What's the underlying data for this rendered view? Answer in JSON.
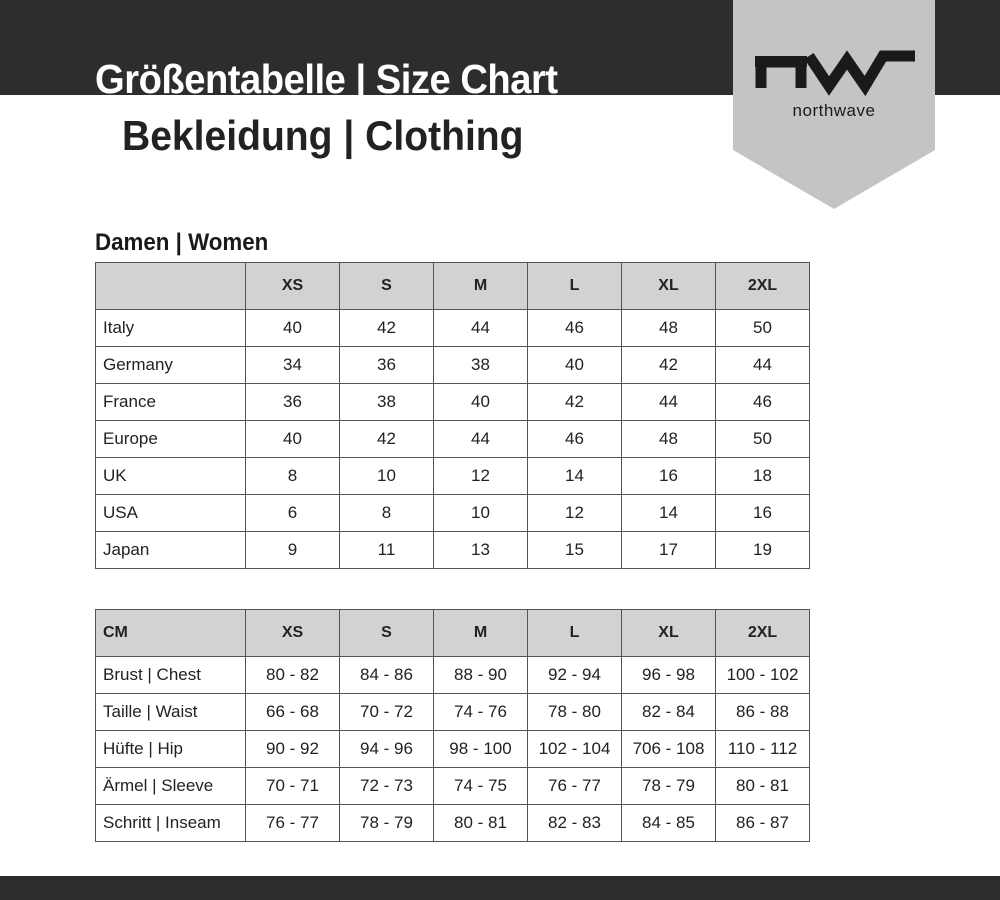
{
  "header": {
    "title": "Größentabelle | Size Chart",
    "subtitle": "Bekleidung | Clothing",
    "logo_mark": "nw",
    "logo_text": "northwave"
  },
  "colors": {
    "band": "#2d2d2d",
    "pennant": "#c4c4c4",
    "table_header": "#d2d2d2"
  },
  "section_title": "Damen | Women",
  "size_table": {
    "corner": "",
    "columns": [
      "XS",
      "S",
      "M",
      "L",
      "XL",
      "2XL"
    ],
    "rows": [
      {
        "label": "Italy",
        "values": [
          "40",
          "42",
          "44",
          "46",
          "48",
          "50"
        ]
      },
      {
        "label": "Germany",
        "values": [
          "34",
          "36",
          "38",
          "40",
          "42",
          "44"
        ]
      },
      {
        "label": "France",
        "values": [
          "36",
          "38",
          "40",
          "42",
          "44",
          "46"
        ]
      },
      {
        "label": "Europe",
        "values": [
          "40",
          "42",
          "44",
          "46",
          "48",
          "50"
        ]
      },
      {
        "label": "UK",
        "values": [
          "8",
          "10",
          "12",
          "14",
          "16",
          "18"
        ]
      },
      {
        "label": "USA",
        "values": [
          "6",
          "8",
          "10",
          "12",
          "14",
          "16"
        ]
      },
      {
        "label": "Japan",
        "values": [
          "9",
          "11",
          "13",
          "15",
          "17",
          "19"
        ]
      }
    ]
  },
  "cm_table": {
    "corner": "CM",
    "columns": [
      "XS",
      "S",
      "M",
      "L",
      "XL",
      "2XL"
    ],
    "rows": [
      {
        "label": "Brust | Chest",
        "values": [
          "80 - 82",
          "84 - 86",
          "88 - 90",
          "92 - 94",
          "96 - 98",
          "100 - 102"
        ]
      },
      {
        "label": "Taille | Waist",
        "values": [
          "66 - 68",
          "70 - 72",
          "74 - 76",
          "78 - 80",
          "82 - 84",
          "86 - 88"
        ]
      },
      {
        "label": "Hüfte | Hip",
        "values": [
          "90 - 92",
          "94 - 96",
          "98 - 100",
          "102 - 104",
          "706 - 108",
          "110 - 112"
        ]
      },
      {
        "label": "Ärmel | Sleeve",
        "values": [
          "70 - 71",
          "72 - 73",
          "74 - 75",
          "76 - 77",
          "78 - 79",
          "80 - 81"
        ]
      },
      {
        "label": "Schritt | Inseam",
        "values": [
          "76 - 77",
          "78 - 79",
          "80 - 81",
          "82 - 83",
          "84 - 85",
          "86 - 87"
        ]
      }
    ]
  }
}
